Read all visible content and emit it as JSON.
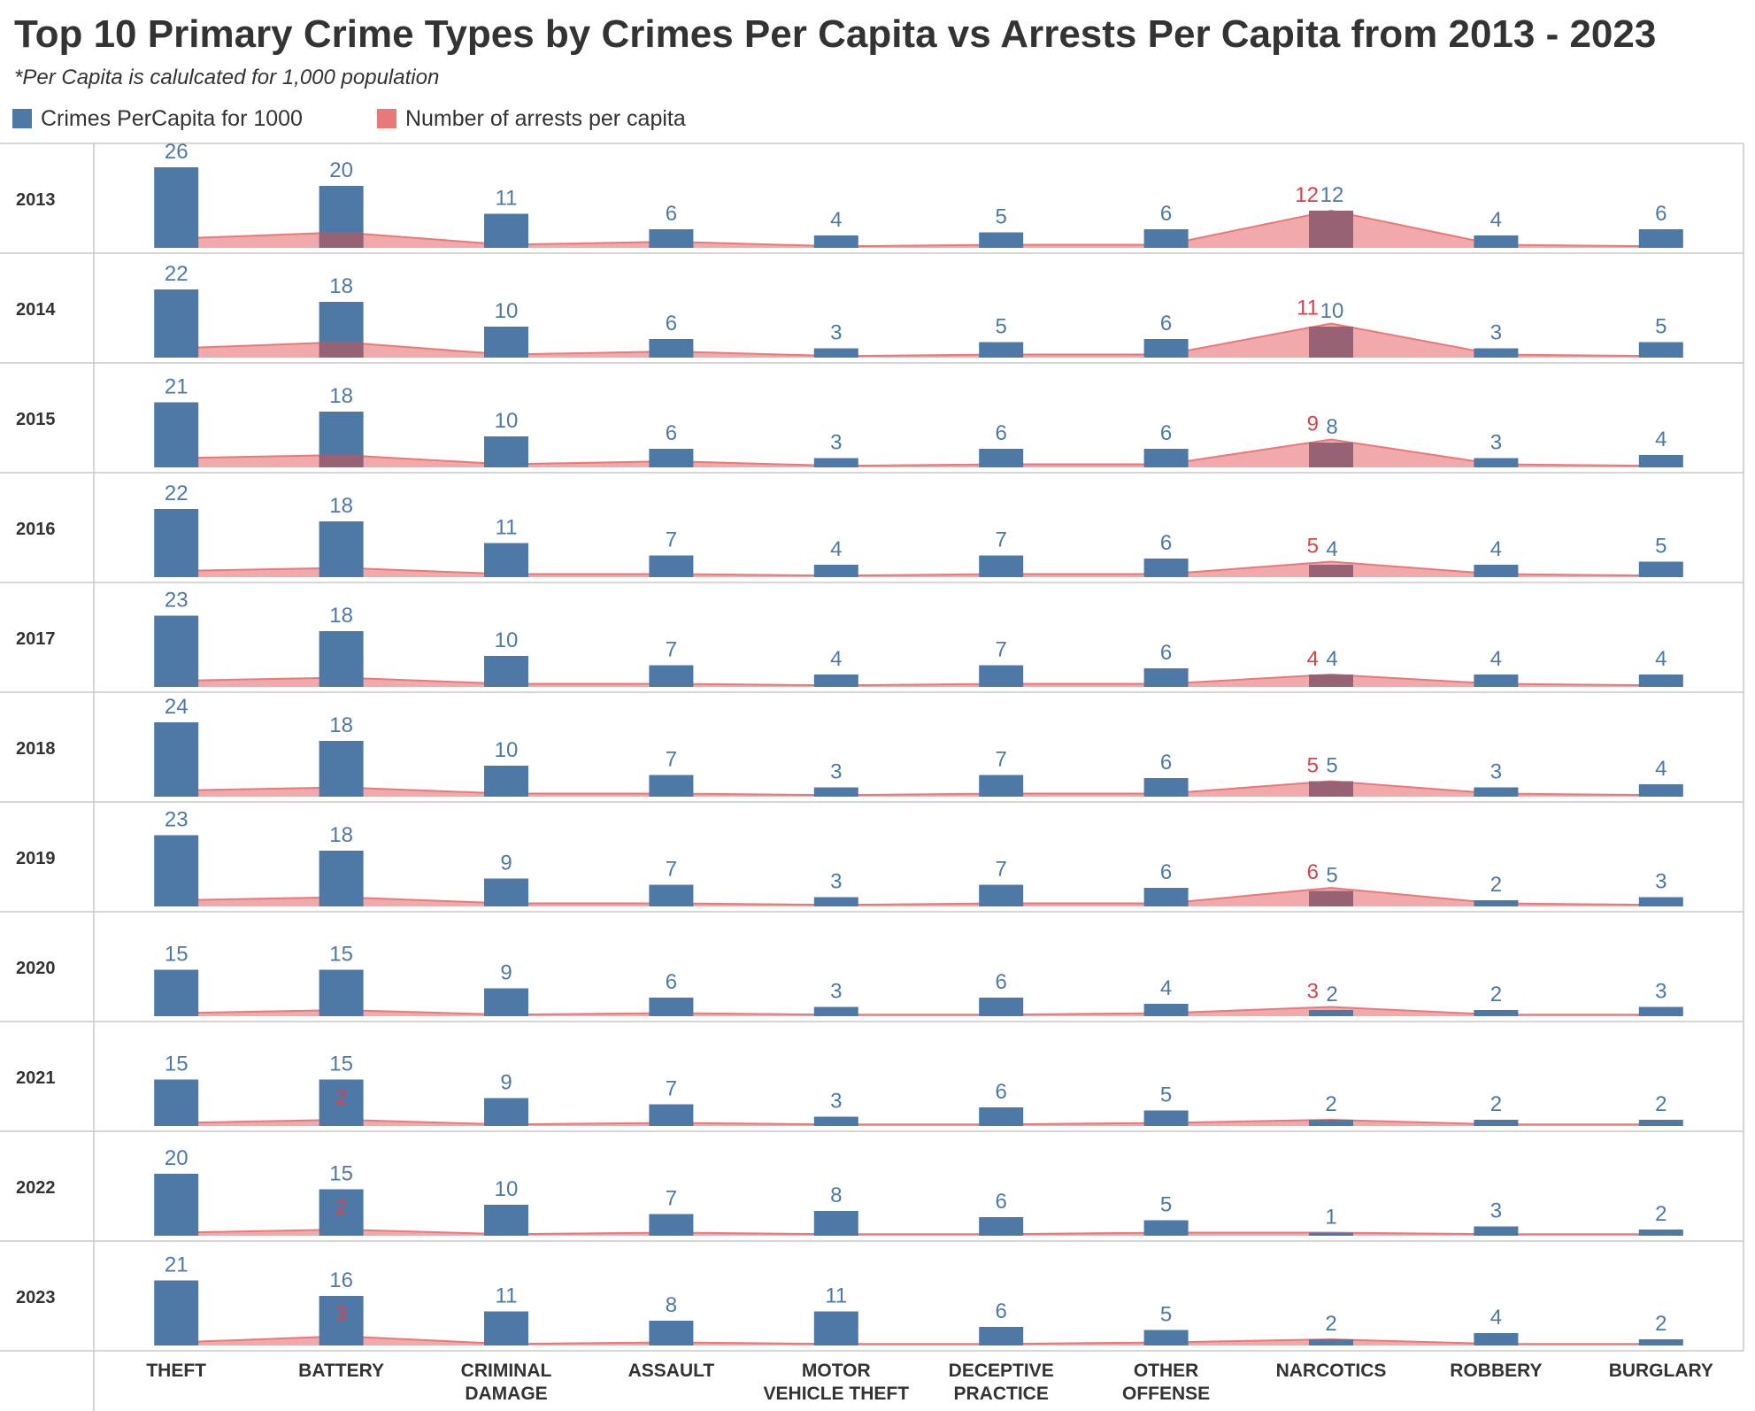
{
  "title": "Top 10 Primary Crime Types by Crimes Per Capita vs Arrests Per Capita from 2013 - 2023",
  "subtitle": "*Per Capita is calulcated for 1,000 population",
  "legend": {
    "crimes_label": "Crimes PerCapita for 1000",
    "arrests_label": "Number of arrests per capita"
  },
  "colors": {
    "crimes": "#4e79a7",
    "arrests": "#e8797b",
    "arrests_fill": "#ee9a9c",
    "arrests_label": "#d9414a",
    "crimes_label": "#4e79a7",
    "overlap": "#a0606f",
    "grid": "#c8c8c8",
    "text": "#333333"
  },
  "chart_data": {
    "type": "bar",
    "row_dimension": "year",
    "years": [
      "2013",
      "2014",
      "2015",
      "2016",
      "2017",
      "2018",
      "2019",
      "2020",
      "2021",
      "2022",
      "2023"
    ],
    "categories": [
      "THEFT",
      "BATTERY",
      "CRIMINAL DAMAGE",
      "ASSAULT",
      "MOTOR VEHICLE THEFT",
      "DECEPTIVE PRACTICE",
      "OTHER OFFENSE",
      "NARCOTICS",
      "ROBBERY",
      "BURGLARY"
    ],
    "category_label_lines": [
      [
        "THEFT"
      ],
      [
        "BATTERY"
      ],
      [
        "CRIMINAL",
        "DAMAGE"
      ],
      [
        "ASSAULT"
      ],
      [
        "MOTOR",
        "VEHICLE THEFT"
      ],
      [
        "DECEPTIVE",
        "PRACTICE"
      ],
      [
        "OTHER",
        "OFFENSE"
      ],
      [
        "NARCOTICS"
      ],
      [
        "ROBBERY"
      ],
      [
        "BURGLARY"
      ]
    ],
    "ylim": [
      0,
      28
    ],
    "series": [
      {
        "name": "Crimes PerCapita for 1000",
        "mark": "bar",
        "values": [
          [
            26,
            20,
            11,
            6,
            4,
            5,
            6,
            12,
            4,
            6
          ],
          [
            22,
            18,
            10,
            6,
            3,
            5,
            6,
            10,
            3,
            5
          ],
          [
            21,
            18,
            10,
            6,
            3,
            6,
            6,
            8,
            3,
            4
          ],
          [
            22,
            18,
            11,
            7,
            4,
            7,
            6,
            4,
            4,
            5
          ],
          [
            23,
            18,
            10,
            7,
            4,
            7,
            6,
            4,
            4,
            4
          ],
          [
            24,
            18,
            10,
            7,
            3,
            7,
            6,
            5,
            3,
            4
          ],
          [
            23,
            18,
            9,
            7,
            3,
            7,
            6,
            5,
            2,
            3
          ],
          [
            15,
            15,
            9,
            6,
            3,
            6,
            4,
            2,
            2,
            3
          ],
          [
            15,
            15,
            9,
            7,
            3,
            6,
            5,
            2,
            2,
            2
          ],
          [
            20,
            15,
            10,
            7,
            8,
            6,
            5,
            1,
            3,
            2
          ],
          [
            21,
            16,
            11,
            8,
            11,
            6,
            5,
            2,
            4,
            2
          ]
        ]
      },
      {
        "name": "Number of arrests per capita",
        "mark": "area",
        "values": [
          [
            3,
            5,
            1,
            2,
            0.5,
            1,
            1,
            12,
            1,
            0.5
          ],
          [
            3,
            5,
            1,
            2,
            0.5,
            1,
            1,
            11,
            1,
            0.5
          ],
          [
            3,
            4,
            1,
            2,
            0.5,
            1,
            1,
            9,
            1,
            0.5
          ],
          [
            2,
            3,
            1,
            1,
            0.5,
            1,
            1,
            5,
            1,
            0.5
          ],
          [
            2,
            3,
            1,
            1,
            0.5,
            1,
            1,
            4,
            1,
            0.5
          ],
          [
            2,
            3,
            1,
            1,
            0.5,
            1,
            1,
            5,
            1,
            0.5
          ],
          [
            2,
            3,
            1,
            1,
            0.5,
            1,
            1,
            6,
            1,
            0.5
          ],
          [
            1,
            2,
            0.5,
            1,
            0.5,
            0.5,
            1,
            3,
            0.5,
            0.5
          ],
          [
            1,
            2,
            0.5,
            1,
            0.5,
            0.5,
            1,
            2,
            0.5,
            0.5
          ],
          [
            1,
            2,
            0.5,
            1,
            0.5,
            0.5,
            1,
            1,
            0.5,
            0.5
          ],
          [
            1,
            3,
            0.5,
            1,
            0.5,
            0.5,
            1,
            2,
            0.5,
            0.5
          ]
        ],
        "labeled": [
          [
            0,
            7,
            "12"
          ],
          [
            1,
            7,
            "11"
          ],
          [
            2,
            7,
            "9"
          ],
          [
            3,
            7,
            "5"
          ],
          [
            4,
            7,
            "4"
          ],
          [
            5,
            7,
            "5"
          ],
          [
            6,
            7,
            "6"
          ],
          [
            7,
            7,
            "3"
          ],
          [
            8,
            1,
            "2"
          ],
          [
            9,
            1,
            "2"
          ],
          [
            10,
            1,
            "3"
          ]
        ]
      }
    ],
    "grid": true,
    "legend_position": "top-left"
  }
}
